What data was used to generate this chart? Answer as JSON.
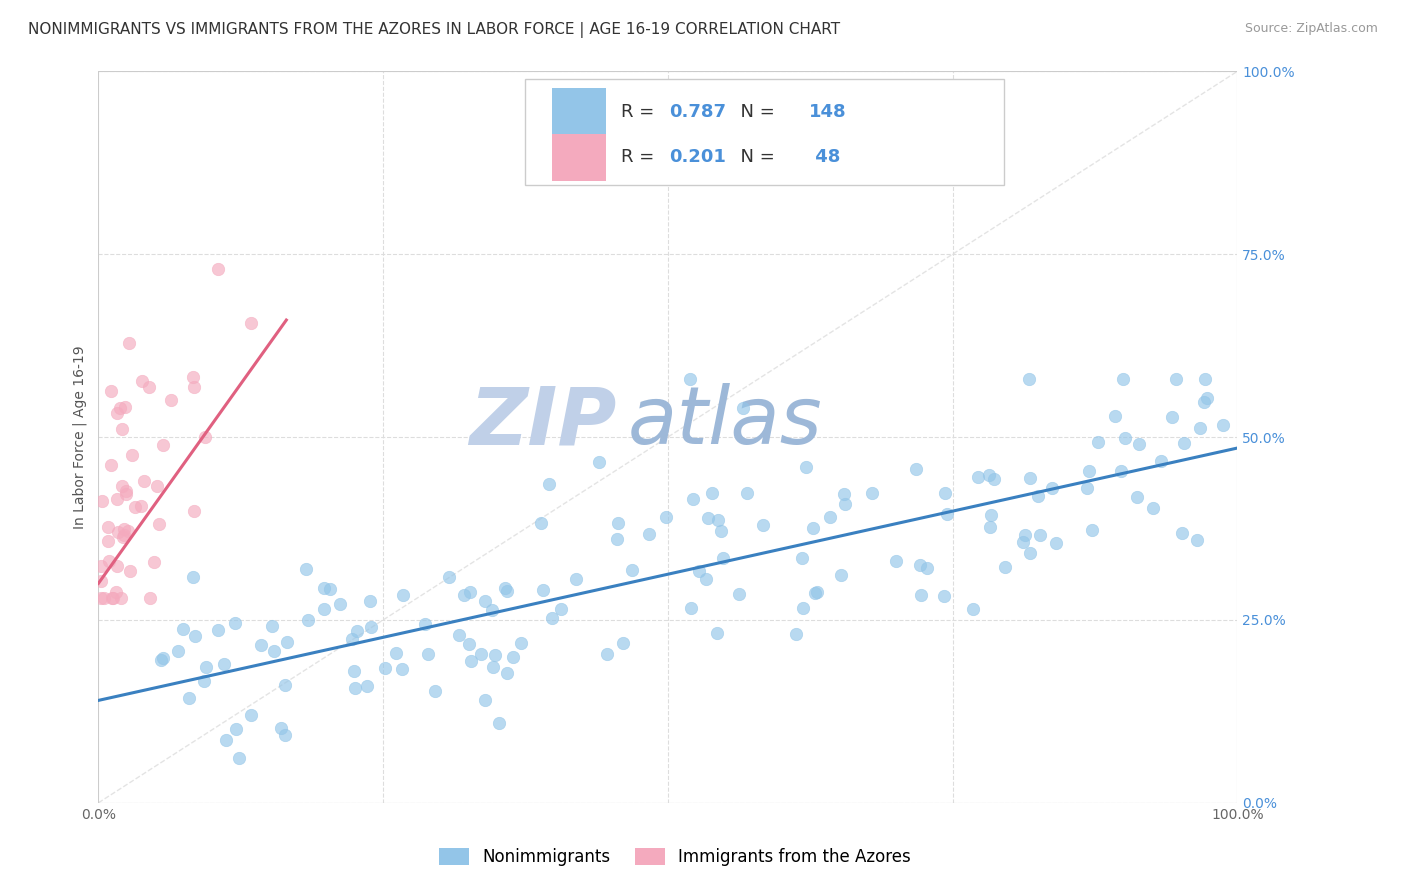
{
  "title": "NONIMMIGRANTS VS IMMIGRANTS FROM THE AZORES IN LABOR FORCE | AGE 16-19 CORRELATION CHART",
  "source": "Source: ZipAtlas.com",
  "ylabel": "In Labor Force | Age 16-19",
  "xlim": [
    0.0,
    1.0
  ],
  "ylim": [
    0.0,
    1.0
  ],
  "ytick_positions": [
    0.0,
    0.25,
    0.5,
    0.75,
    1.0
  ],
  "ytick_labels": [
    "0.0%",
    "25.0%",
    "50.0%",
    "75.0%",
    "100.0%"
  ],
  "xtick_positions": [
    0.0,
    1.0
  ],
  "xtick_labels": [
    "0.0%",
    "100.0%"
  ],
  "R_blue": 0.787,
  "N_blue": 148,
  "R_pink": 0.201,
  "N_pink": 48,
  "blue_scatter_color": "#93C5E8",
  "pink_scatter_color": "#F4AABE",
  "blue_line_color": "#3A80C0",
  "pink_line_color": "#E06080",
  "diagonal_color": "#DDDDDD",
  "watermark_zip_color": "#C0D0E8",
  "watermark_atlas_color": "#9DB8D8",
  "background_color": "#FFFFFF",
  "grid_color": "#DDDDDD",
  "legend_label_blue": "Nonimmigrants",
  "legend_label_pink": "Immigrants from the Azores",
  "blue_trend_x": [
    0.0,
    1.0
  ],
  "blue_trend_y": [
    0.14,
    0.485
  ],
  "pink_trend_x": [
    0.0,
    0.165
  ],
  "pink_trend_y": [
    0.3,
    0.66
  ],
  "title_fontsize": 11,
  "axis_fontsize": 10,
  "tick_fontsize": 10,
  "right_tick_color": "#4A90D9"
}
